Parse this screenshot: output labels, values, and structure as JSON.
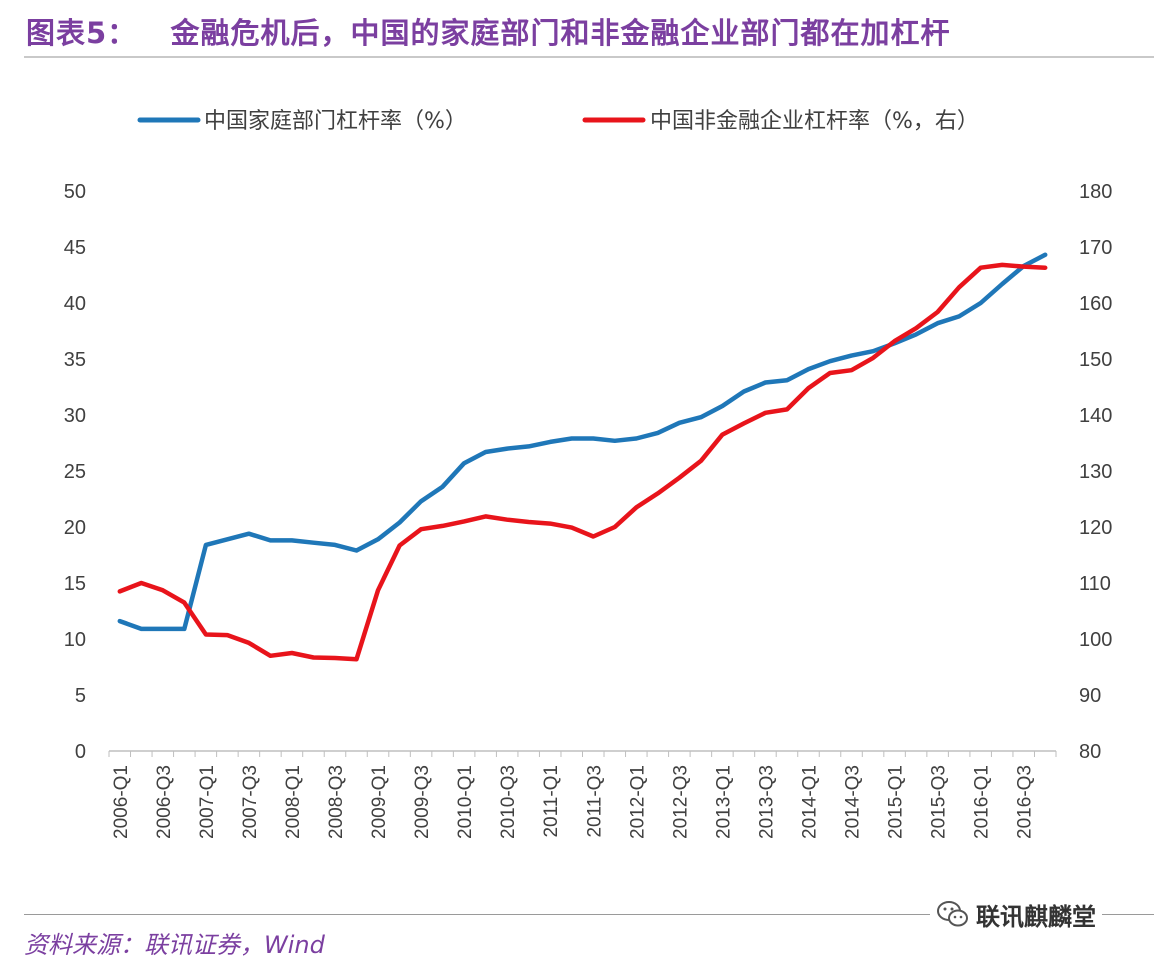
{
  "figure": {
    "title": "图表5：   金融危机后，中国的家庭部门和非金融企业部门都在加杠杆",
    "source": "资料来源：联讯证券，Wind",
    "watermark": "联讯麒麟堂",
    "watermark_icon": "wechat-icon"
  },
  "colors": {
    "title": "#7B3FA0",
    "household": "#1F77B8",
    "corporate": "#E8141B",
    "axis_text": "#404040",
    "axis_line": "#BFBFBF"
  },
  "chart_data": {
    "type": "line",
    "title": "",
    "x": [
      "2006-Q1",
      "2006-Q2",
      "2006-Q3",
      "2006-Q4",
      "2007-Q1",
      "2007-Q2",
      "2007-Q3",
      "2007-Q4",
      "2008-Q1",
      "2008-Q2",
      "2008-Q3",
      "2008-Q4",
      "2009-Q1",
      "2009-Q2",
      "2009-Q3",
      "2009-Q4",
      "2010-Q1",
      "2010-Q2",
      "2010-Q3",
      "2010-Q4",
      "2011-Q1",
      "2011-Q2",
      "2011-Q3",
      "2011-Q4",
      "2012-Q1",
      "2012-Q2",
      "2012-Q3",
      "2012-Q4",
      "2013-Q1",
      "2013-Q2",
      "2013-Q3",
      "2013-Q4",
      "2014-Q1",
      "2014-Q2",
      "2014-Q3",
      "2014-Q4",
      "2015-Q1",
      "2015-Q2",
      "2015-Q3",
      "2015-Q4",
      "2016-Q1",
      "2016-Q2",
      "2016-Q3",
      "2016-Q4"
    ],
    "xtick_labels": [
      "2006-Q1",
      "2006-Q3",
      "2007-Q1",
      "2007-Q3",
      "2008-Q1",
      "2008-Q3",
      "2009-Q1",
      "2009-Q3",
      "2010-Q1",
      "2010-Q3",
      "2011-Q1",
      "2011-Q3",
      "2012-Q1",
      "2012-Q3",
      "2013-Q1",
      "2013-Q3",
      "2014-Q1",
      "2014-Q3",
      "2015-Q1",
      "2015-Q3",
      "2016-Q1",
      "2016-Q3"
    ],
    "series": [
      {
        "name": "中国家庭部门杠杆率（%）",
        "axis": "left",
        "color": "#1F77B8",
        "values": [
          11.6,
          10.9,
          10.9,
          10.9,
          18.4,
          18.9,
          19.4,
          18.8,
          18.8,
          18.6,
          18.4,
          17.9,
          18.9,
          20.4,
          22.3,
          23.6,
          25.7,
          26.7,
          27.0,
          27.2,
          27.6,
          27.9,
          27.9,
          27.7,
          27.9,
          28.4,
          29.3,
          29.8,
          30.8,
          32.1,
          32.9,
          33.1,
          34.1,
          34.8,
          35.3,
          35.7,
          36.4,
          37.2,
          38.2,
          38.8,
          40.0,
          41.7,
          43.3,
          44.3
        ]
      },
      {
        "name": "中国非金融企业杠杆率（%，右）",
        "axis": "right",
        "color": "#E8141B",
        "values": [
          108.5,
          110.0,
          108.7,
          106.5,
          100.8,
          100.7,
          99.3,
          97.0,
          97.5,
          96.7,
          96.6,
          96.4,
          108.7,
          116.7,
          119.6,
          120.2,
          121.0,
          121.9,
          121.3,
          120.9,
          120.6,
          119.9,
          118.3,
          120.0,
          123.5,
          126.0,
          128.8,
          131.8,
          136.5,
          138.5,
          140.4,
          141.0,
          144.8,
          147.5,
          148.0,
          150.2,
          153.2,
          155.5,
          158.4,
          162.8,
          166.3,
          166.8,
          166.5,
          166.3
        ]
      }
    ],
    "y_left": {
      "ylim": [
        0,
        50
      ],
      "ticks": [
        "0",
        "5",
        "10",
        "15",
        "20",
        "25",
        "30",
        "35",
        "40",
        "45",
        "50"
      ]
    },
    "y_right": {
      "ylim": [
        80,
        180
      ],
      "ticks": [
        "80",
        "90",
        "100",
        "110",
        "120",
        "130",
        "140",
        "150",
        "160",
        "170",
        "180"
      ]
    },
    "legend_placement": "top-center",
    "grid": false
  }
}
